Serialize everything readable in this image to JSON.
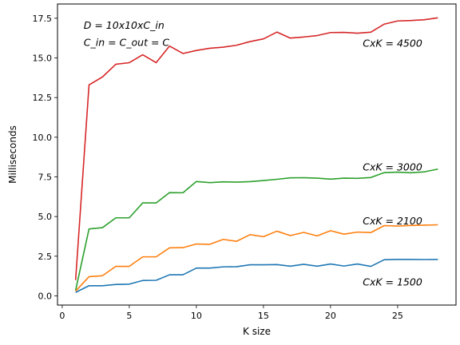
{
  "chart_data": {
    "type": "line",
    "xlabel": "K size",
    "ylabel": "Milliseconds",
    "xlim": [
      -0.35,
      29.35
    ],
    "ylim": [
      -0.58,
      18.4
    ],
    "xticks": [
      0,
      5,
      10,
      15,
      20,
      25
    ],
    "yticks": [
      0.0,
      2.5,
      5.0,
      7.5,
      10.0,
      12.5,
      15.0,
      17.5
    ],
    "ytick_labels": [
      "0.0",
      "2.5",
      "5.0",
      "7.5",
      "10.0",
      "12.5",
      "15.0",
      "17.5"
    ],
    "grid": false,
    "x": [
      1,
      2,
      3,
      4,
      5,
      6,
      7,
      8,
      9,
      10,
      11,
      12,
      13,
      14,
      15,
      16,
      17,
      18,
      19,
      20,
      21,
      22,
      23,
      24,
      25,
      26,
      27,
      28
    ],
    "series": [
      {
        "name": "CxK = 4500",
        "color": "#d62728",
        "values": [
          1.0,
          13.3,
          13.8,
          14.6,
          14.7,
          15.2,
          14.7,
          15.75,
          15.28,
          15.47,
          15.61,
          15.68,
          15.8,
          16.03,
          16.2,
          16.63,
          16.25,
          16.32,
          16.41,
          16.6,
          16.61,
          16.56,
          16.62,
          17.13,
          17.33,
          17.36,
          17.41,
          17.53
        ]
      },
      {
        "name": "CxK = 3000",
        "color": "#2ca02c",
        "values": [
          0.35,
          4.22,
          4.3,
          4.92,
          4.92,
          5.86,
          5.86,
          6.51,
          6.5,
          7.21,
          7.14,
          7.19,
          7.17,
          7.2,
          7.27,
          7.35,
          7.44,
          7.45,
          7.42,
          7.36,
          7.42,
          7.41,
          7.46,
          7.77,
          7.8,
          7.76,
          7.82,
          7.99
        ]
      },
      {
        "name": "CxK = 2100",
        "color": "#ff7f0e",
        "values": [
          0.3,
          1.21,
          1.27,
          1.86,
          1.86,
          2.46,
          2.46,
          3.03,
          3.04,
          3.27,
          3.25,
          3.56,
          3.44,
          3.86,
          3.73,
          4.08,
          3.8,
          4.0,
          3.78,
          4.11,
          3.89,
          4.02,
          3.99,
          4.43,
          4.4,
          4.44,
          4.46,
          4.48
        ]
      },
      {
        "name": "CxK = 1500",
        "color": "#1f77b4",
        "values": [
          0.22,
          0.64,
          0.64,
          0.72,
          0.74,
          0.97,
          0.98,
          1.33,
          1.33,
          1.75,
          1.75,
          1.83,
          1.84,
          1.96,
          1.96,
          1.97,
          1.87,
          1.99,
          1.87,
          2.01,
          1.88,
          2.01,
          1.86,
          2.28,
          2.3,
          2.3,
          2.29,
          2.3
        ]
      }
    ],
    "annotations": [
      {
        "id": "a4500",
        "text": "CxK = 4500",
        "x": 22.4,
        "y": 15.9
      },
      {
        "id": "a3000",
        "text": "CxK = 3000",
        "x": 22.4,
        "y": 8.1
      },
      {
        "id": "a2100",
        "text": "CxK = 2100",
        "x": 22.4,
        "y": 4.7
      },
      {
        "id": "a1500",
        "text": "CxK = 1500",
        "x": 22.4,
        "y": 0.85
      },
      {
        "id": "dims",
        "text": "D = 10x10xC_in",
        "x": 1.6,
        "y": 17.05
      },
      {
        "id": "chans",
        "text": "C_in = C_out = C",
        "x": 1.6,
        "y": 15.95
      }
    ]
  }
}
